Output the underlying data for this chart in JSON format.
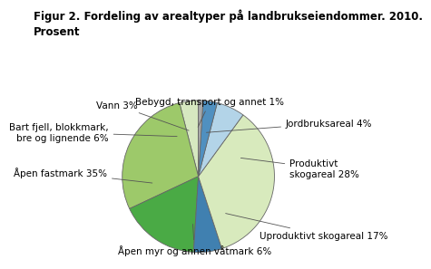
{
  "title": "Figur 2. Fordeling av arealtyper på landbrukseiendommer. 2010.\nProsent",
  "slices": [
    {
      "label": "Jordbruksareal 4%",
      "value": 4,
      "color": "#d6e8c0"
    },
    {
      "label": "Produktivt\nskogareal 28%",
      "value": 28,
      "color": "#9dc96a"
    },
    {
      "label": "Uproduktivt skogareal 17%",
      "value": 17,
      "color": "#4aaa45"
    },
    {
      "label": "Åpen myr og annen våtmark 6%",
      "value": 6,
      "color": "#4080b0"
    },
    {
      "label": "Åpen fastmark 35%",
      "value": 35,
      "color": "#d8eabd"
    },
    {
      "label": "Bart fjell, blokkmark,\nbre og lignende 6%",
      "value": 6,
      "color": "#b3d4e8"
    },
    {
      "label": "Vann 3%",
      "value": 3,
      "color": "#5090c0"
    },
    {
      "label": "Bebygd, transport og annet 1%",
      "value": 1,
      "color": "#a8a8a8"
    }
  ],
  "startangle": 90,
  "background_color": "#ffffff",
  "title_fontsize": 8.5,
  "label_fontsize": 7.5
}
